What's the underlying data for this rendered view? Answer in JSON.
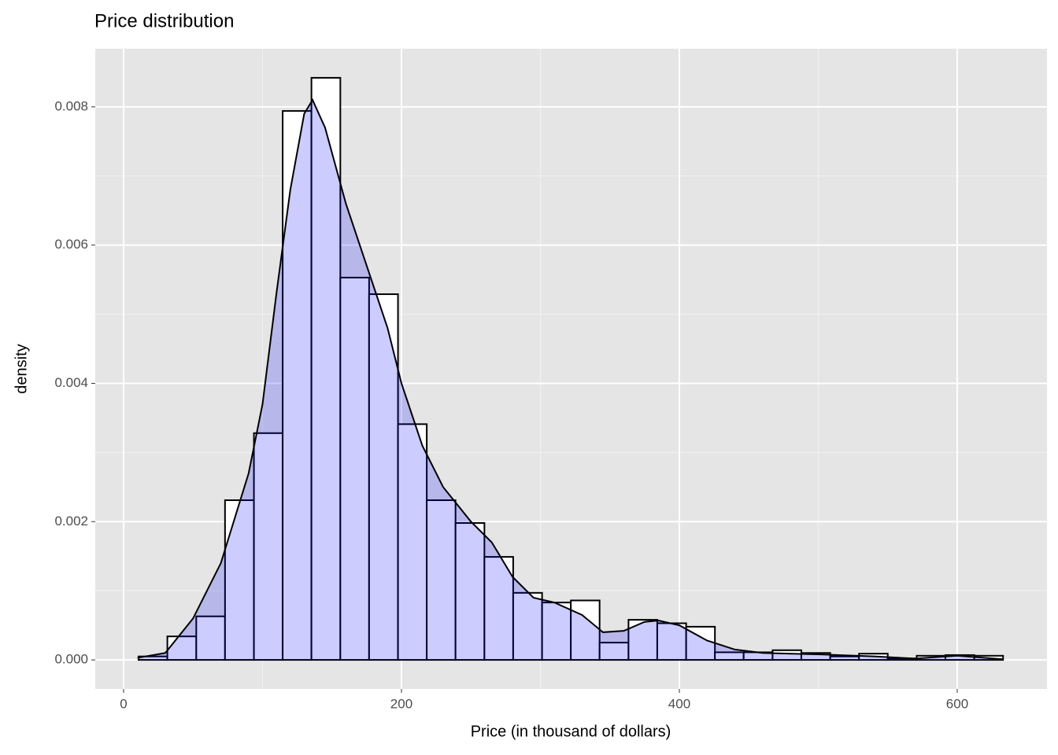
{
  "chart_data": {
    "type": "histogram",
    "title": "Price distribution",
    "x_label": "Price (in thousand of dollars)",
    "y_label": "density",
    "bins": [
      10.8,
      31.5,
      52.3,
      73.0,
      93.8,
      114.5,
      135.2,
      156.0,
      176.7,
      197.5,
      218.2,
      238.9,
      259.7,
      280.4,
      301.2,
      321.9,
      342.6,
      363.4,
      384.1,
      404.9,
      425.6,
      446.3,
      467.1,
      487.8,
      508.6,
      529.3,
      550.0,
      570.8,
      591.5,
      612.3,
      633.0
    ],
    "values": [
      5e-05,
      0.00034,
      0.00063,
      0.00231,
      0.00328,
      0.00794,
      0.00842,
      0.00553,
      0.00529,
      0.00341,
      0.00231,
      0.00198,
      0.00149,
      0.00097,
      0.00083,
      0.00086,
      0.00025,
      0.00058,
      0.00053,
      0.00048,
      0.00011,
      0.00011,
      0.00014,
      0.0001,
      5e-05,
      9e-05,
      2e-05,
      6e-05,
      7e-05,
      6e-05
    ],
    "color": "#ffffff",
    "edge_color": "#000000",
    "density": {
      "x": [
        10,
        30,
        50,
        70,
        90,
        100,
        110,
        120,
        130,
        136,
        145,
        160,
        175,
        190,
        200,
        215,
        230,
        250,
        265,
        280,
        295,
        310,
        330,
        345,
        360,
        375,
        385,
        400,
        420,
        440,
        460,
        500,
        540,
        570,
        600,
        633
      ],
      "y": [
        3e-05,
        0.0001,
        0.0006,
        0.0014,
        0.0027,
        0.0037,
        0.0053,
        0.0068,
        0.0079,
        0.0081,
        0.0077,
        0.0066,
        0.0057,
        0.0048,
        0.004,
        0.0031,
        0.0025,
        0.002,
        0.0017,
        0.0012,
        0.0009,
        0.00083,
        0.00065,
        0.0004,
        0.00042,
        0.00055,
        0.00057,
        0.0005,
        0.00028,
        0.00015,
        0.0001,
        8e-05,
        5e-05,
        2e-05,
        6e-05,
        1e-05
      ],
      "color": "#000000",
      "fill": "#0000ff",
      "opacity": 0.2
    },
    "xlim": [
      -20.4,
      664.6
    ],
    "ylim": [
      -0.00042,
      0.00884
    ],
    "xticks": [
      0,
      200,
      400,
      600
    ],
    "xminor": [
      100,
      300,
      500
    ],
    "yticks": [
      {
        "value": 0,
        "label": "0.000"
      },
      {
        "value": 0.002,
        "label": "0.002"
      },
      {
        "value": 0.004,
        "label": "0.004"
      },
      {
        "value": 0.006,
        "label": "0.006"
      },
      {
        "value": 0.008,
        "label": "0.008"
      }
    ],
    "yminor": [
      0.001,
      0.003,
      0.005,
      0.007
    ],
    "grid": true
  }
}
